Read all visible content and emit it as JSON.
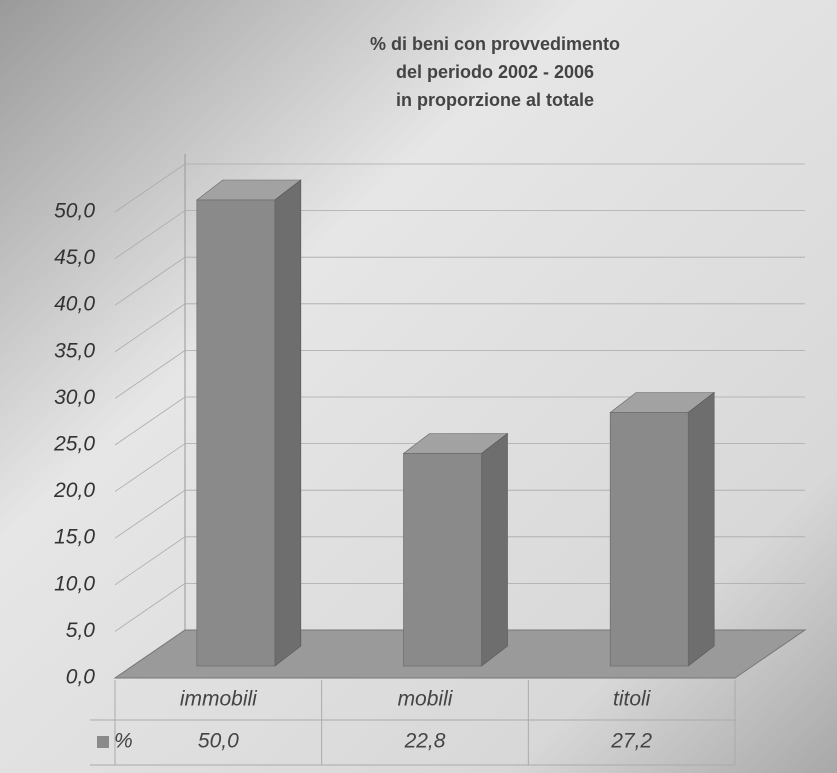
{
  "chart_data": {
    "type": "bar",
    "title": [
      "% di beni con provvedimento",
      "del periodo 2002 - 2006",
      "in proporzione al totale"
    ],
    "categories": [
      "immobili",
      "mobili",
      "titoli"
    ],
    "series": [
      {
        "name": "%",
        "color": "#8a8a8a",
        "values": [
          50.0,
          22.8,
          27.2
        ],
        "value_labels": [
          "50,0",
          "22,8",
          "27,2"
        ]
      }
    ],
    "ylim": [
      0,
      50
    ],
    "yticks": [
      {
        "value": 0,
        "label": "0,0"
      },
      {
        "value": 5,
        "label": "5,0"
      },
      {
        "value": 10,
        "label": "10,0"
      },
      {
        "value": 15,
        "label": "15,0"
      },
      {
        "value": 20,
        "label": "20,0"
      },
      {
        "value": 25,
        "label": "25,0"
      },
      {
        "value": 30,
        "label": "30,0"
      },
      {
        "value": 35,
        "label": "35,0"
      },
      {
        "value": 40,
        "label": "40,0"
      },
      {
        "value": 45,
        "label": "45,0"
      },
      {
        "value": 50,
        "label": "50,0"
      }
    ],
    "grid": true
  }
}
